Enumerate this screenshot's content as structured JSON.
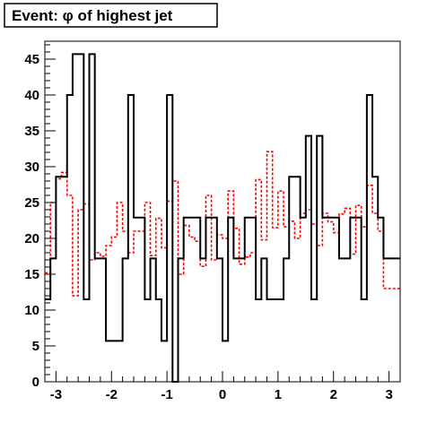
{
  "chart_data": {
    "type": "histogram",
    "title": "Event: φ of highest jet",
    "xlabel": "",
    "ylabel": "",
    "xlim": [
      -3.2,
      3.2
    ],
    "ylim": [
      0,
      47.5
    ],
    "xticks": [
      -3,
      -2,
      -1,
      0,
      1,
      2,
      3
    ],
    "yticks": [
      0,
      5,
      10,
      15,
      20,
      25,
      30,
      35,
      40,
      45
    ],
    "bin_width": 0.1,
    "grid": false,
    "legend": "none",
    "series": [
      {
        "color": "#000000",
        "style": "solid",
        "values": [
          11.5,
          17.2,
          28.6,
          28.6,
          40.0,
          45.7,
          45.7,
          11.5,
          45.7,
          17.2,
          17.2,
          5.7,
          5.7,
          5.7,
          17.2,
          40.0,
          22.9,
          22.9,
          11.5,
          17.2,
          11.5,
          5.7,
          40.0,
          0.0,
          17.2,
          22.9,
          22.9,
          22.9,
          17.2,
          22.9,
          22.9,
          17.2,
          5.7,
          22.9,
          17.2,
          17.2,
          22.9,
          22.9,
          11.5,
          17.2,
          11.5,
          11.5,
          11.5,
          17.2,
          28.6,
          28.6,
          22.9,
          34.3,
          11.5,
          34.3,
          22.9,
          22.9,
          22.9,
          17.2,
          17.2,
          22.9,
          22.9,
          11.5,
          40.0,
          28.6,
          22.9,
          17.2,
          17.2,
          17.2
        ]
      },
      {
        "color": "#ff0000",
        "style": "dashed",
        "values": [
          15.2,
          25.0,
          28.3,
          29.2,
          26.0,
          12.0,
          24.0,
          24.8,
          17.0,
          18.0,
          17.5,
          19.0,
          20.2,
          25.0,
          21.0,
          18.0,
          21.0,
          21.0,
          25.0,
          17.6,
          22.8,
          18.7,
          25.2,
          28.0,
          15.0,
          21.8,
          20.2,
          19.6,
          16.1,
          26.0,
          17.0,
          20.5,
          20.0,
          26.6,
          21.4,
          16.4,
          17.4,
          18.0,
          28.2,
          19.8,
          32.1,
          21.5,
          26.6,
          21.6,
          22.4,
          20.0,
          23.5,
          24.0,
          22.0,
          19.0,
          23.5,
          22.3,
          20.8,
          23.4,
          24.2,
          17.8,
          24.6,
          21.6,
          27.4,
          23.5,
          21.0,
          13.0,
          13.0,
          13.0
        ]
      }
    ]
  }
}
